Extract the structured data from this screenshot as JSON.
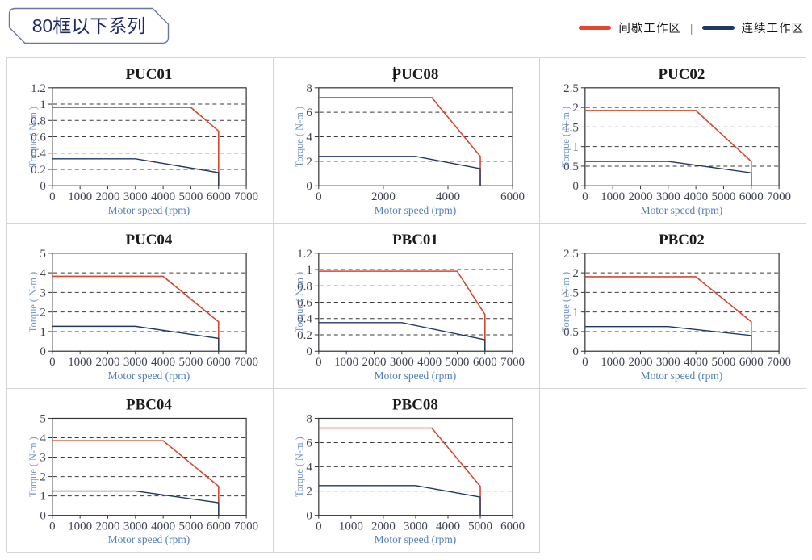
{
  "header": {
    "badge": "80框以下系列"
  },
  "legend": {
    "divider": "|",
    "items": [
      {
        "label": "间歇工作区",
        "color": "#e3472b"
      },
      {
        "label": "连续工作区",
        "color": "#1f3864"
      }
    ]
  },
  "colors": {
    "intermittent_red": "#d9472b",
    "continuous_navy": "#1f3864",
    "axis_label_blue": "#4f81bd",
    "grid_border_gray": "#d5d5d5",
    "badge_navy": "#1d2a66"
  },
  "chart_data": [
    {
      "type": "line",
      "title": "PUC01",
      "xlabel": "Motor speed (rpm)",
      "ylabel": "Torque ( N-m )",
      "xlim": [
        0,
        7000
      ],
      "ylim": [
        0,
        1.2
      ],
      "x_ticks": [
        0,
        1000,
        2000,
        3000,
        4000,
        5000,
        6000,
        7000
      ],
      "y_ticks": [
        0,
        0.2,
        0.4,
        0.6,
        0.8,
        1,
        1.2
      ],
      "grid": "dashed-horizontal",
      "cursor": false,
      "series": [
        {
          "name": "间歇工作区",
          "color": "#d9472b",
          "points": [
            [
              0,
              0.96
            ],
            [
              5000,
              0.96
            ],
            [
              6000,
              0.67
            ],
            [
              6000,
              0
            ]
          ]
        },
        {
          "name": "连续工作区",
          "color": "#1f3864",
          "points": [
            [
              0,
              0.33
            ],
            [
              3000,
              0.33
            ],
            [
              6000,
              0.16
            ],
            [
              6000,
              0
            ]
          ]
        }
      ]
    },
    {
      "type": "line",
      "title": "PUC08",
      "xlabel": "Motor speed (rpm)",
      "ylabel": "Torque ( N-m )",
      "xlim": [
        0,
        6000
      ],
      "ylim": [
        0,
        8
      ],
      "x_ticks": [
        0,
        2000,
        4000,
        6000
      ],
      "y_ticks": [
        0,
        2,
        4,
        6,
        8
      ],
      "grid": "dashed-horizontal",
      "cursor": true,
      "series": [
        {
          "name": "间歇工作区",
          "color": "#d9472b",
          "points": [
            [
              0,
              7.2
            ],
            [
              3500,
              7.2
            ],
            [
              5000,
              2.4
            ],
            [
              5000,
              0
            ]
          ]
        },
        {
          "name": "连续工作区",
          "color": "#1f3864",
          "points": [
            [
              0,
              2.4
            ],
            [
              3000,
              2.4
            ],
            [
              5000,
              1.4
            ],
            [
              5000,
              0
            ]
          ]
        }
      ]
    },
    {
      "type": "line",
      "title": "PUC02",
      "xlabel": "Motor speed (rpm)",
      "ylabel": "Torque ( N-m )",
      "xlim": [
        0,
        7000
      ],
      "ylim": [
        0,
        2.5
      ],
      "x_ticks": [
        0,
        1000,
        2000,
        3000,
        4000,
        5000,
        6000,
        7000
      ],
      "y_ticks": [
        0,
        0.5,
        1,
        1.5,
        2,
        2.5
      ],
      "grid": "dashed-horizontal",
      "cursor": false,
      "series": [
        {
          "name": "间歇工作区",
          "color": "#d9472b",
          "points": [
            [
              0,
              1.92
            ],
            [
              4000,
              1.92
            ],
            [
              6000,
              0.62
            ],
            [
              6000,
              0
            ]
          ]
        },
        {
          "name": "连续工作区",
          "color": "#1f3864",
          "points": [
            [
              0,
              0.62
            ],
            [
              3000,
              0.62
            ],
            [
              6000,
              0.33
            ],
            [
              6000,
              0
            ]
          ]
        }
      ]
    },
    {
      "type": "line",
      "title": "PUC04",
      "xlabel": "Motor speed (rpm)",
      "ylabel": "Torque ( N-m )",
      "xlim": [
        0,
        7000
      ],
      "ylim": [
        0,
        5
      ],
      "x_ticks": [
        0,
        1000,
        2000,
        3000,
        4000,
        5000,
        6000,
        7000
      ],
      "y_ticks": [
        0,
        1,
        2,
        3,
        4,
        5
      ],
      "grid": "dashed-horizontal",
      "cursor": false,
      "series": [
        {
          "name": "间歇工作区",
          "color": "#d9472b",
          "points": [
            [
              0,
              3.82
            ],
            [
              4000,
              3.82
            ],
            [
              6000,
              1.5
            ],
            [
              6000,
              0
            ]
          ]
        },
        {
          "name": "连续工作区",
          "color": "#1f3864",
          "points": [
            [
              0,
              1.27
            ],
            [
              3000,
              1.27
            ],
            [
              6000,
              0.65
            ],
            [
              6000,
              0
            ]
          ]
        }
      ]
    },
    {
      "type": "line",
      "title": "PBC01",
      "xlabel": "Motor speed (rpm)",
      "ylabel": "Torque ( N-m )",
      "xlim": [
        0,
        7000
      ],
      "ylim": [
        0,
        1.2
      ],
      "x_ticks": [
        0,
        1000,
        2000,
        3000,
        4000,
        5000,
        6000,
        7000
      ],
      "y_ticks": [
        0,
        0.2,
        0.4,
        0.6,
        0.8,
        1,
        1.2
      ],
      "grid": "dashed-horizontal",
      "cursor": false,
      "series": [
        {
          "name": "间歇工作区",
          "color": "#d9472b",
          "points": [
            [
              0,
              0.98
            ],
            [
              5000,
              0.98
            ],
            [
              6000,
              0.45
            ],
            [
              6000,
              0
            ]
          ]
        },
        {
          "name": "连续工作区",
          "color": "#1f3864",
          "points": [
            [
              0,
              0.35
            ],
            [
              3000,
              0.35
            ],
            [
              6000,
              0.14
            ],
            [
              6000,
              0
            ]
          ]
        }
      ]
    },
    {
      "type": "line",
      "title": "PBC02",
      "xlabel": "Motor speed (rpm)",
      "ylabel": "Torque ( N-m )",
      "xlim": [
        0,
        7000
      ],
      "ylim": [
        0,
        2.5
      ],
      "x_ticks": [
        0,
        1000,
        2000,
        3000,
        4000,
        5000,
        6000,
        7000
      ],
      "y_ticks": [
        0,
        0.5,
        1,
        1.5,
        2,
        2.5
      ],
      "grid": "dashed-horizontal",
      "cursor": false,
      "series": [
        {
          "name": "间歇工作区",
          "color": "#d9472b",
          "points": [
            [
              0,
              1.9
            ],
            [
              4000,
              1.9
            ],
            [
              6000,
              0.75
            ],
            [
              6000,
              0
            ]
          ]
        },
        {
          "name": "连续工作区",
          "color": "#1f3864",
          "points": [
            [
              0,
              0.63
            ],
            [
              3000,
              0.63
            ],
            [
              6000,
              0.4
            ],
            [
              6000,
              0
            ]
          ]
        }
      ]
    },
    {
      "type": "line",
      "title": "PBC04",
      "xlabel": "Motor speed (rpm)",
      "ylabel": "Torque ( N-m )",
      "xlim": [
        0,
        7000
      ],
      "ylim": [
        0,
        5
      ],
      "x_ticks": [
        0,
        1000,
        2000,
        3000,
        4000,
        5000,
        6000,
        7000
      ],
      "y_ticks": [
        0,
        1,
        2,
        3,
        4,
        5
      ],
      "grid": "dashed-horizontal",
      "cursor": false,
      "series": [
        {
          "name": "间歇工作区",
          "color": "#d9472b",
          "points": [
            [
              0,
              3.85
            ],
            [
              4000,
              3.85
            ],
            [
              6000,
              1.5
            ],
            [
              6000,
              0
            ]
          ]
        },
        {
          "name": "连续工作区",
          "color": "#1f3864",
          "points": [
            [
              0,
              1.25
            ],
            [
              3000,
              1.25
            ],
            [
              6000,
              0.65
            ],
            [
              6000,
              0
            ]
          ]
        }
      ]
    },
    {
      "type": "line",
      "title": "PBC08",
      "xlabel": "Motor speed (rpm)",
      "ylabel": "Torque ( N-m )",
      "xlim": [
        0,
        6000
      ],
      "ylim": [
        0,
        8
      ],
      "x_ticks": [
        0,
        1000,
        2000,
        3000,
        4000,
        5000,
        6000
      ],
      "y_ticks": [
        0,
        2,
        4,
        6,
        8
      ],
      "grid": "dashed-horizontal",
      "cursor": false,
      "series": [
        {
          "name": "间歇工作区",
          "color": "#d9472b",
          "points": [
            [
              0,
              7.2
            ],
            [
              3500,
              7.2
            ],
            [
              5000,
              2.4
            ],
            [
              5000,
              0
            ]
          ]
        },
        {
          "name": "连续工作区",
          "color": "#1f3864",
          "points": [
            [
              0,
              2.45
            ],
            [
              3000,
              2.45
            ],
            [
              5000,
              1.5
            ],
            [
              5000,
              0
            ]
          ]
        }
      ]
    }
  ]
}
